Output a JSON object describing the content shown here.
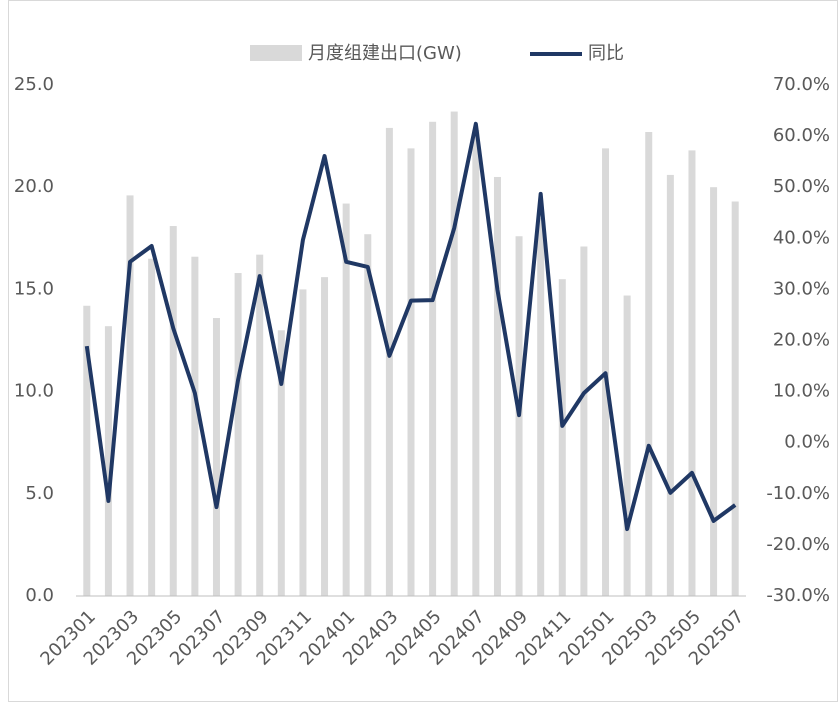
{
  "chart_data": {
    "type": "bar_line",
    "categories": [
      "202301",
      null,
      "202303",
      null,
      "202305",
      null,
      "202307",
      null,
      "202309",
      null,
      "202311",
      null,
      "202401",
      null,
      "202403",
      null,
      "202405",
      null,
      "202407",
      null,
      "202409",
      null,
      "202411",
      null,
      "202501",
      null,
      "202503",
      null,
      "202505",
      null,
      "202507"
    ],
    "series": [
      {
        "name": "月度组建出口(GW)",
        "color": "#d9d9d9",
        "type": "bar",
        "values": [
          14.2,
          13.2,
          19.6,
          16.5,
          18.1,
          16.6,
          13.6,
          15.8,
          16.7,
          13.0,
          15.0,
          15.6,
          19.2,
          17.7,
          22.9,
          21.9,
          23.2,
          23.7,
          22.8,
          20.5,
          17.6,
          18.5,
          15.5,
          17.1,
          21.9,
          14.7,
          22.7,
          20.6,
          21.8,
          20.0,
          19.3
        ]
      },
      {
        "name": "同比",
        "color": "#203864",
        "type": "line",
        "axis": "y2",
        "values": [
          18.9,
          -11.4,
          35.4,
          38.5,
          22.4,
          9.7,
          -12.6,
          12.3,
          32.6,
          11.5,
          39.7,
          56.1,
          35.4,
          34.4,
          17.0,
          27.8,
          27.9,
          42.0,
          62.4,
          29.9,
          5.4,
          48.7,
          3.3,
          9.7,
          13.6,
          -16.9,
          -0.6,
          -9.8,
          -5.9,
          -15.3,
          -12.2
        ]
      }
    ],
    "ylim": [
      0,
      25
    ],
    "yticks": [
      {
        "value": 0,
        "label": "0.0"
      },
      {
        "value": 5,
        "label": "5.0"
      },
      {
        "value": 10,
        "label": "10.0"
      },
      {
        "value": 15,
        "label": "15.0"
      },
      {
        "value": 20,
        "label": "20.0"
      },
      {
        "value": 25,
        "label": "25.0"
      }
    ],
    "y2lim": [
      -30,
      70
    ],
    "y2ticks": [
      {
        "value": -30,
        "label": "-30.0%"
      },
      {
        "value": -20,
        "label": "-20.0%"
      },
      {
        "value": -10,
        "label": "-10.0%"
      },
      {
        "value": 0,
        "label": "0.0%"
      },
      {
        "value": 10,
        "label": "10.0%"
      },
      {
        "value": 20,
        "label": "20.0%"
      },
      {
        "value": 30,
        "label": "30.0%"
      },
      {
        "value": 40,
        "label": "40.0%"
      },
      {
        "value": 50,
        "label": "50.0%"
      },
      {
        "value": 60,
        "label": "60.0%"
      },
      {
        "value": 70,
        "label": "70.0%"
      }
    ],
    "legend": "top",
    "grid": false
  }
}
